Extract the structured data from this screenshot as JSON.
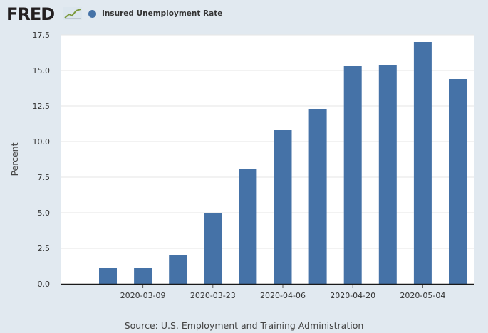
{
  "header": {
    "logo_text": "FRED",
    "logo_icon": "line-chart-icon",
    "legend_label": "Insured Unemployment Rate",
    "legend_color": "#4572a7"
  },
  "chart_data": {
    "type": "bar",
    "x": [
      "2020-03-02",
      "2020-03-09",
      "2020-03-16",
      "2020-03-23",
      "2020-03-30",
      "2020-04-06",
      "2020-04-13",
      "2020-04-20",
      "2020-04-27",
      "2020-05-04",
      "2020-05-11"
    ],
    "x_tick_labels": [
      "2020-03-09",
      "2020-03-23",
      "2020-04-06",
      "2020-04-20",
      "2020-05-04"
    ],
    "series": [
      {
        "name": "Insured Unemployment Rate",
        "color": "#4572a7",
        "values": [
          1.1,
          1.1,
          2.0,
          5.0,
          8.1,
          10.8,
          12.3,
          15.3,
          15.4,
          17.0,
          14.4
        ]
      }
    ],
    "ylabel": "Percent",
    "xlabel": "",
    "ylim": [
      0,
      17.5
    ],
    "y_ticks": [
      "0.0",
      "2.5",
      "5.0",
      "7.5",
      "10.0",
      "12.5",
      "15.0",
      "17.5"
    ],
    "grid": true,
    "legend": "top-left"
  },
  "footer": {
    "source": "Source: U.S. Employment and Training Administration"
  }
}
